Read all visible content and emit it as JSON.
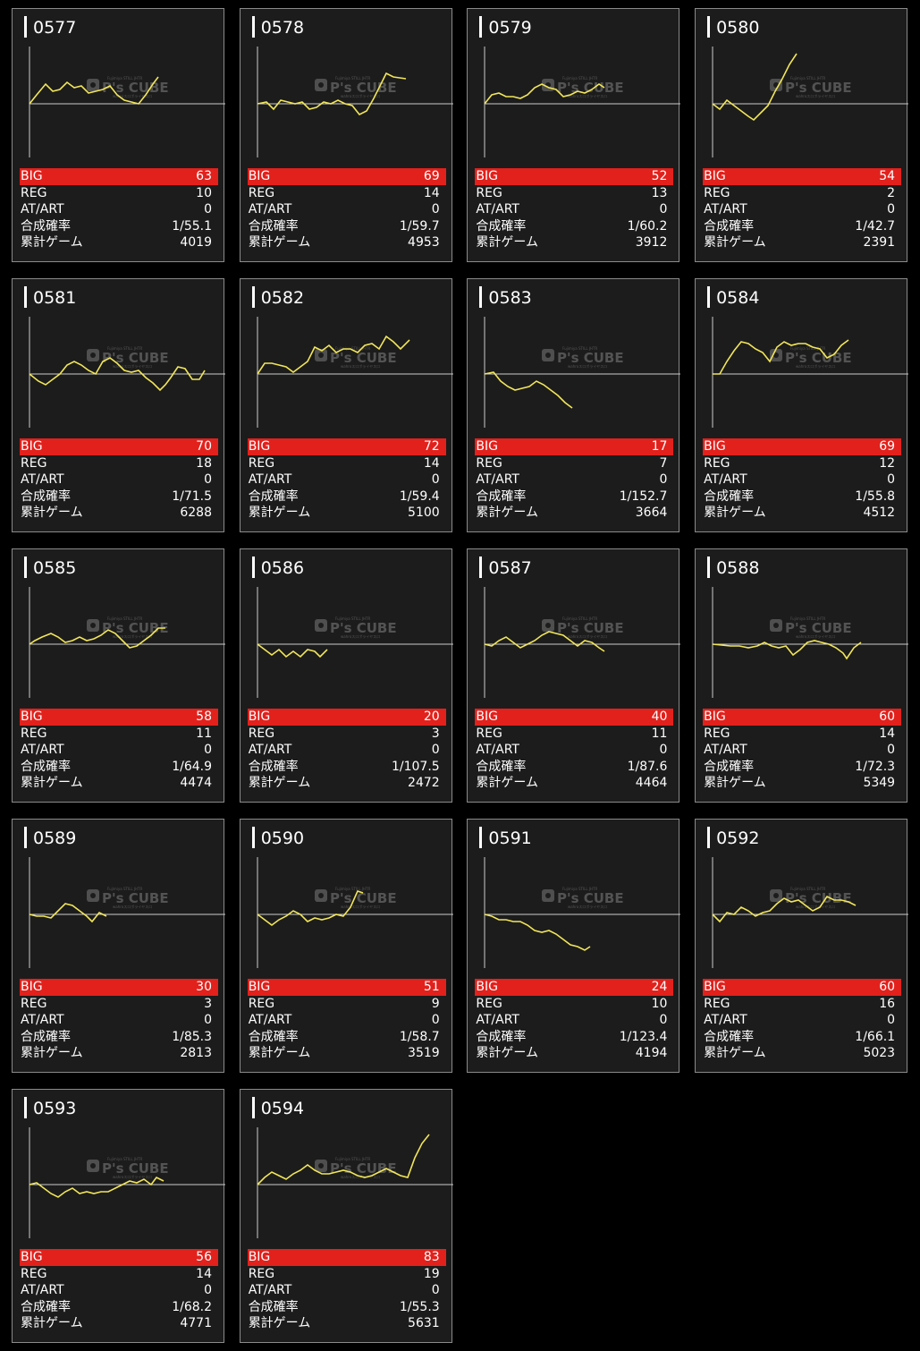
{
  "colors": {
    "big_bar": "#e2211c",
    "line": "#f2e65a",
    "axis": "#cccccc"
  },
  "watermark": {
    "top": "Fujimiya STILL JHTR",
    "brand": "P's CUBE",
    "bottom": "wahroスロポライヤスロ"
  },
  "labels": {
    "big": "BIG",
    "reg": "REG",
    "at": "AT/ART",
    "rate": "合成確率",
    "games": "累計ゲーム"
  },
  "machines": [
    {
      "id": "0577",
      "big": "63",
      "reg": "10",
      "at": "0",
      "rate": "1/55.1",
      "games": "4019",
      "curve": [
        [
          0,
          0
        ],
        [
          8,
          -10
        ],
        [
          18,
          -22
        ],
        [
          26,
          -14
        ],
        [
          34,
          -16
        ],
        [
          42,
          -24
        ],
        [
          50,
          -18
        ],
        [
          58,
          -20
        ],
        [
          66,
          -12
        ],
        [
          74,
          -14
        ],
        [
          82,
          -16
        ],
        [
          90,
          -20
        ],
        [
          98,
          -10
        ],
        [
          106,
          -4
        ],
        [
          114,
          -2
        ],
        [
          122,
          0
        ],
        [
          130,
          -10
        ],
        [
          138,
          -22
        ],
        [
          144,
          -30
        ]
      ]
    },
    {
      "id": "0578",
      "big": "69",
      "reg": "14",
      "at": "0",
      "rate": "1/59.7",
      "games": "4953",
      "curve": [
        [
          0,
          0
        ],
        [
          10,
          -2
        ],
        [
          18,
          6
        ],
        [
          26,
          -4
        ],
        [
          34,
          -2
        ],
        [
          42,
          0
        ],
        [
          50,
          -2
        ],
        [
          58,
          6
        ],
        [
          66,
          4
        ],
        [
          74,
          -2
        ],
        [
          82,
          0
        ],
        [
          90,
          -4
        ],
        [
          98,
          0
        ],
        [
          106,
          2
        ],
        [
          114,
          12
        ],
        [
          122,
          8
        ],
        [
          130,
          -6
        ],
        [
          138,
          -22
        ],
        [
          144,
          -34
        ],
        [
          152,
          -30
        ],
        [
          166,
          -28
        ]
      ]
    },
    {
      "id": "0579",
      "big": "52",
      "reg": "13",
      "at": "0",
      "rate": "1/60.2",
      "games": "3912",
      "curve": [
        [
          0,
          0
        ],
        [
          8,
          -10
        ],
        [
          16,
          -12
        ],
        [
          24,
          -8
        ],
        [
          32,
          -8
        ],
        [
          40,
          -6
        ],
        [
          48,
          -10
        ],
        [
          56,
          -18
        ],
        [
          64,
          -22
        ],
        [
          72,
          -18
        ],
        [
          80,
          -16
        ],
        [
          88,
          -8
        ],
        [
          96,
          -10
        ],
        [
          104,
          -14
        ],
        [
          112,
          -12
        ],
        [
          120,
          -16
        ],
        [
          128,
          -22
        ],
        [
          134,
          -18
        ]
      ]
    },
    {
      "id": "0580",
      "big": "54",
      "reg": "2",
      "at": "0",
      "rate": "1/42.7",
      "games": "2391",
      "curve": [
        [
          0,
          0
        ],
        [
          8,
          6
        ],
        [
          16,
          -4
        ],
        [
          24,
          2
        ],
        [
          32,
          8
        ],
        [
          40,
          14
        ],
        [
          46,
          18
        ],
        [
          54,
          10
        ],
        [
          62,
          2
        ],
        [
          70,
          -14
        ],
        [
          78,
          -28
        ],
        [
          86,
          -44
        ],
        [
          94,
          -56
        ]
      ]
    },
    {
      "id": "0581",
      "big": "70",
      "reg": "18",
      "at": "0",
      "rate": "1/71.5",
      "games": "6288",
      "curve": [
        [
          0,
          0
        ],
        [
          10,
          8
        ],
        [
          18,
          12
        ],
        [
          26,
          6
        ],
        [
          34,
          0
        ],
        [
          42,
          -10
        ],
        [
          50,
          -14
        ],
        [
          58,
          -10
        ],
        [
          66,
          -4
        ],
        [
          74,
          0
        ],
        [
          82,
          -14
        ],
        [
          90,
          -18
        ],
        [
          98,
          -12
        ],
        [
          106,
          -4
        ],
        [
          114,
          -2
        ],
        [
          122,
          -4
        ],
        [
          130,
          4
        ],
        [
          138,
          10
        ],
        [
          146,
          18
        ],
        [
          152,
          12
        ],
        [
          158,
          4
        ],
        [
          166,
          -8
        ],
        [
          174,
          -6
        ],
        [
          182,
          6
        ],
        [
          190,
          6
        ],
        [
          196,
          -4
        ]
      ]
    },
    {
      "id": "0582",
      "big": "72",
      "reg": "14",
      "at": "0",
      "rate": "1/59.4",
      "games": "5100",
      "curve": [
        [
          0,
          0
        ],
        [
          8,
          -12
        ],
        [
          16,
          -12
        ],
        [
          24,
          -10
        ],
        [
          32,
          -8
        ],
        [
          40,
          -2
        ],
        [
          48,
          -8
        ],
        [
          56,
          -14
        ],
        [
          64,
          -30
        ],
        [
          72,
          -26
        ],
        [
          80,
          -32
        ],
        [
          88,
          -24
        ],
        [
          96,
          -28
        ],
        [
          104,
          -28
        ],
        [
          112,
          -24
        ],
        [
          120,
          -32
        ],
        [
          128,
          -34
        ],
        [
          136,
          -28
        ],
        [
          144,
          -42
        ],
        [
          152,
          -36
        ],
        [
          160,
          -28
        ],
        [
          170,
          -38
        ]
      ]
    },
    {
      "id": "0583",
      "big": "17",
      "reg": "7",
      "at": "0",
      "rate": "1/152.7",
      "games": "3664",
      "curve": [
        [
          0,
          0
        ],
        [
          10,
          -2
        ],
        [
          18,
          8
        ],
        [
          26,
          14
        ],
        [
          34,
          18
        ],
        [
          42,
          16
        ],
        [
          50,
          14
        ],
        [
          58,
          8
        ],
        [
          66,
          12
        ],
        [
          74,
          18
        ],
        [
          82,
          24
        ],
        [
          90,
          32
        ],
        [
          98,
          38
        ]
      ]
    },
    {
      "id": "0584",
      "big": "69",
      "reg": "12",
      "at": "0",
      "rate": "1/55.8",
      "games": "4512",
      "curve": [
        [
          0,
          0
        ],
        [
          8,
          0
        ],
        [
          16,
          -14
        ],
        [
          24,
          -26
        ],
        [
          32,
          -36
        ],
        [
          40,
          -34
        ],
        [
          48,
          -28
        ],
        [
          56,
          -24
        ],
        [
          64,
          -14
        ],
        [
          72,
          -30
        ],
        [
          80,
          -36
        ],
        [
          88,
          -32
        ],
        [
          96,
          -34
        ],
        [
          104,
          -34
        ],
        [
          112,
          -30
        ],
        [
          120,
          -28
        ],
        [
          128,
          -18
        ],
        [
          136,
          -22
        ],
        [
          144,
          -32
        ],
        [
          152,
          -38
        ]
      ]
    },
    {
      "id": "0585",
      "big": "58",
      "reg": "11",
      "at": "0",
      "rate": "1/64.9",
      "games": "4474",
      "curve": [
        [
          0,
          0
        ],
        [
          6,
          -4
        ],
        [
          14,
          -8
        ],
        [
          24,
          -12
        ],
        [
          32,
          -8
        ],
        [
          40,
          -2
        ],
        [
          48,
          -4
        ],
        [
          56,
          -8
        ],
        [
          64,
          -4
        ],
        [
          72,
          -6
        ],
        [
          80,
          -10
        ],
        [
          88,
          -16
        ],
        [
          96,
          -12
        ],
        [
          104,
          -4
        ],
        [
          112,
          4
        ],
        [
          120,
          2
        ],
        [
          128,
          -4
        ],
        [
          136,
          -10
        ],
        [
          144,
          -18
        ],
        [
          152,
          -18
        ]
      ]
    },
    {
      "id": "0586",
      "big": "20",
      "reg": "3",
      "at": "0",
      "rate": "1/107.5",
      "games": "2472",
      "curve": [
        [
          0,
          0
        ],
        [
          8,
          6
        ],
        [
          16,
          12
        ],
        [
          24,
          6
        ],
        [
          32,
          14
        ],
        [
          40,
          8
        ],
        [
          48,
          14
        ],
        [
          56,
          6
        ],
        [
          64,
          8
        ],
        [
          70,
          14
        ],
        [
          78,
          6
        ]
      ]
    },
    {
      "id": "0587",
      "big": "40",
      "reg": "11",
      "at": "0",
      "rate": "1/87.6",
      "games": "4464",
      "curve": [
        [
          0,
          0
        ],
        [
          8,
          2
        ],
        [
          16,
          -4
        ],
        [
          24,
          -8
        ],
        [
          32,
          -2
        ],
        [
          40,
          4
        ],
        [
          48,
          0
        ],
        [
          56,
          -4
        ],
        [
          64,
          -10
        ],
        [
          72,
          -14
        ],
        [
          80,
          -12
        ],
        [
          88,
          -10
        ],
        [
          96,
          -4
        ],
        [
          104,
          2
        ],
        [
          112,
          -4
        ],
        [
          120,
          -2
        ],
        [
          128,
          4
        ],
        [
          134,
          8
        ]
      ]
    },
    {
      "id": "0588",
      "big": "60",
      "reg": "14",
      "at": "0",
      "rate": "1/72.3",
      "games": "5349",
      "curve": [
        [
          0,
          0
        ],
        [
          10,
          1
        ],
        [
          20,
          2
        ],
        [
          30,
          2
        ],
        [
          40,
          4
        ],
        [
          50,
          2
        ],
        [
          58,
          -2
        ],
        [
          66,
          2
        ],
        [
          74,
          4
        ],
        [
          82,
          2
        ],
        [
          90,
          12
        ],
        [
          98,
          6
        ],
        [
          106,
          -2
        ],
        [
          114,
          -4
        ],
        [
          122,
          -2
        ],
        [
          130,
          0
        ],
        [
          138,
          4
        ],
        [
          146,
          10
        ],
        [
          150,
          16
        ],
        [
          158,
          4
        ],
        [
          166,
          -2
        ]
      ]
    },
    {
      "id": "0589",
      "big": "30",
      "reg": "3",
      "at": "0",
      "rate": "1/85.3",
      "games": "2813",
      "curve": [
        [
          0,
          0
        ],
        [
          8,
          2
        ],
        [
          16,
          2
        ],
        [
          24,
          4
        ],
        [
          32,
          -4
        ],
        [
          40,
          -12
        ],
        [
          48,
          -10
        ],
        [
          56,
          -4
        ],
        [
          64,
          2
        ],
        [
          70,
          8
        ],
        [
          78,
          -2
        ],
        [
          86,
          2
        ]
      ]
    },
    {
      "id": "0590",
      "big": "51",
      "reg": "9",
      "at": "0",
      "rate": "1/58.7",
      "games": "3519",
      "curve": [
        [
          0,
          0
        ],
        [
          8,
          6
        ],
        [
          16,
          12
        ],
        [
          24,
          6
        ],
        [
          32,
          2
        ],
        [
          40,
          -4
        ],
        [
          48,
          0
        ],
        [
          56,
          8
        ],
        [
          64,
          4
        ],
        [
          72,
          6
        ],
        [
          80,
          4
        ],
        [
          88,
          0
        ],
        [
          96,
          2
        ],
        [
          104,
          -8
        ],
        [
          112,
          -26
        ],
        [
          118,
          -24
        ]
      ]
    },
    {
      "id": "0591",
      "big": "24",
      "reg": "10",
      "at": "0",
      "rate": "1/123.4",
      "games": "4194",
      "curve": [
        [
          0,
          0
        ],
        [
          8,
          2
        ],
        [
          16,
          6
        ],
        [
          24,
          6
        ],
        [
          32,
          8
        ],
        [
          40,
          8
        ],
        [
          48,
          12
        ],
        [
          56,
          18
        ],
        [
          64,
          20
        ],
        [
          72,
          18
        ],
        [
          80,
          22
        ],
        [
          88,
          28
        ],
        [
          96,
          34
        ],
        [
          104,
          36
        ],
        [
          112,
          40
        ],
        [
          118,
          36
        ]
      ]
    },
    {
      "id": "0592",
      "big": "60",
      "reg": "16",
      "at": "0",
      "rate": "1/66.1",
      "games": "5023",
      "curve": [
        [
          0,
          0
        ],
        [
          8,
          8
        ],
        [
          16,
          -2
        ],
        [
          24,
          0
        ],
        [
          32,
          -8
        ],
        [
          40,
          -4
        ],
        [
          48,
          2
        ],
        [
          56,
          -2
        ],
        [
          64,
          -4
        ],
        [
          72,
          -12
        ],
        [
          80,
          -18
        ],
        [
          88,
          -14
        ],
        [
          96,
          -16
        ],
        [
          104,
          -10
        ],
        [
          112,
          -4
        ],
        [
          120,
          -8
        ],
        [
          128,
          -20
        ],
        [
          136,
          -16
        ],
        [
          144,
          -16
        ],
        [
          152,
          -14
        ],
        [
          160,
          -10
        ]
      ]
    },
    {
      "id": "0593",
      "big": "56",
      "reg": "14",
      "at": "0",
      "rate": "1/68.2",
      "games": "4771",
      "curve": [
        [
          0,
          0
        ],
        [
          8,
          -2
        ],
        [
          16,
          4
        ],
        [
          24,
          10
        ],
        [
          32,
          14
        ],
        [
          40,
          8
        ],
        [
          48,
          4
        ],
        [
          56,
          10
        ],
        [
          64,
          8
        ],
        [
          72,
          10
        ],
        [
          80,
          8
        ],
        [
          88,
          8
        ],
        [
          96,
          4
        ],
        [
          104,
          0
        ],
        [
          112,
          -4
        ],
        [
          120,
          -2
        ],
        [
          128,
          -6
        ],
        [
          136,
          0
        ],
        [
          142,
          -8
        ],
        [
          150,
          -4
        ]
      ]
    },
    {
      "id": "0594",
      "big": "83",
      "reg": "19",
      "at": "0",
      "rate": "1/55.3",
      "games": "5631",
      "curve": [
        [
          0,
          0
        ],
        [
          8,
          -8
        ],
        [
          16,
          -14
        ],
        [
          24,
          -10
        ],
        [
          32,
          -6
        ],
        [
          40,
          -12
        ],
        [
          48,
          -16
        ],
        [
          56,
          -22
        ],
        [
          64,
          -16
        ],
        [
          72,
          -12
        ],
        [
          80,
          -12
        ],
        [
          88,
          -14
        ],
        [
          96,
          -16
        ],
        [
          104,
          -14
        ],
        [
          112,
          -10
        ],
        [
          120,
          -8
        ],
        [
          128,
          -10
        ],
        [
          136,
          -14
        ],
        [
          144,
          -18
        ],
        [
          152,
          -14
        ],
        [
          160,
          -10
        ],
        [
          168,
          -8
        ],
        [
          176,
          -30
        ],
        [
          184,
          -46
        ],
        [
          192,
          -56
        ]
      ]
    }
  ]
}
